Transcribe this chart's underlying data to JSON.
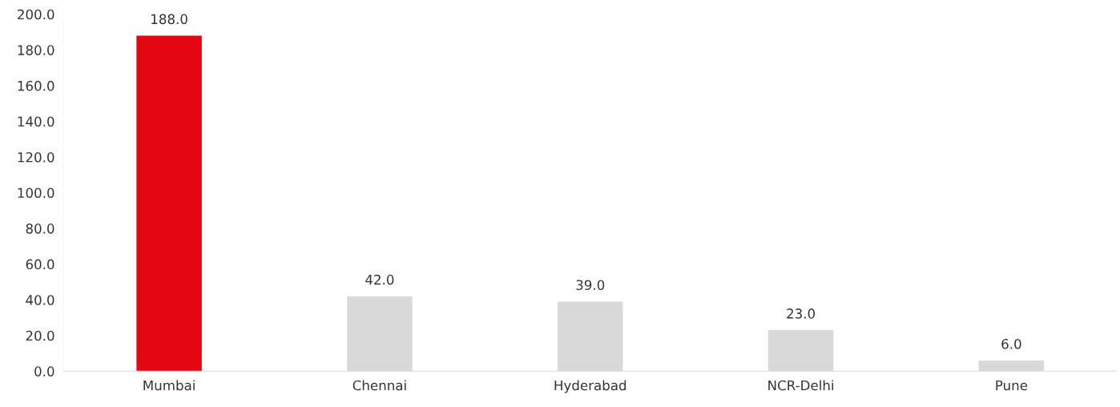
{
  "chart_data": {
    "type": "bar",
    "categories": [
      "Mumbai",
      "Chennai",
      "Hyderabad",
      "NCR-Delhi",
      "Pune"
    ],
    "values": [
      188,
      42,
      39,
      23,
      6
    ],
    "colors": [
      "#e30613",
      "#d9d9d9",
      "#d9d9d9",
      "#d9d9d9",
      "#d9d9d9"
    ],
    "value_labels": [
      "188.0",
      "42.0",
      "39.0",
      "23.0",
      "6.0"
    ],
    "ylim": [
      0,
      200
    ],
    "yticks": [
      {
        "value": 0,
        "label": "0.0"
      },
      {
        "value": 20,
        "label": "20.0"
      },
      {
        "value": 40,
        "label": "40.0"
      },
      {
        "value": 60,
        "label": "60.0"
      },
      {
        "value": 80,
        "label": "80.0"
      },
      {
        "value": 100,
        "label": "100.0"
      },
      {
        "value": 120,
        "label": "120.0"
      },
      {
        "value": 140,
        "label": "140.0"
      },
      {
        "value": 160,
        "label": "160.0"
      },
      {
        "value": 180,
        "label": "180.0"
      },
      {
        "value": 200,
        "label": "200.0"
      }
    ],
    "grid": false,
    "legend": false
  }
}
